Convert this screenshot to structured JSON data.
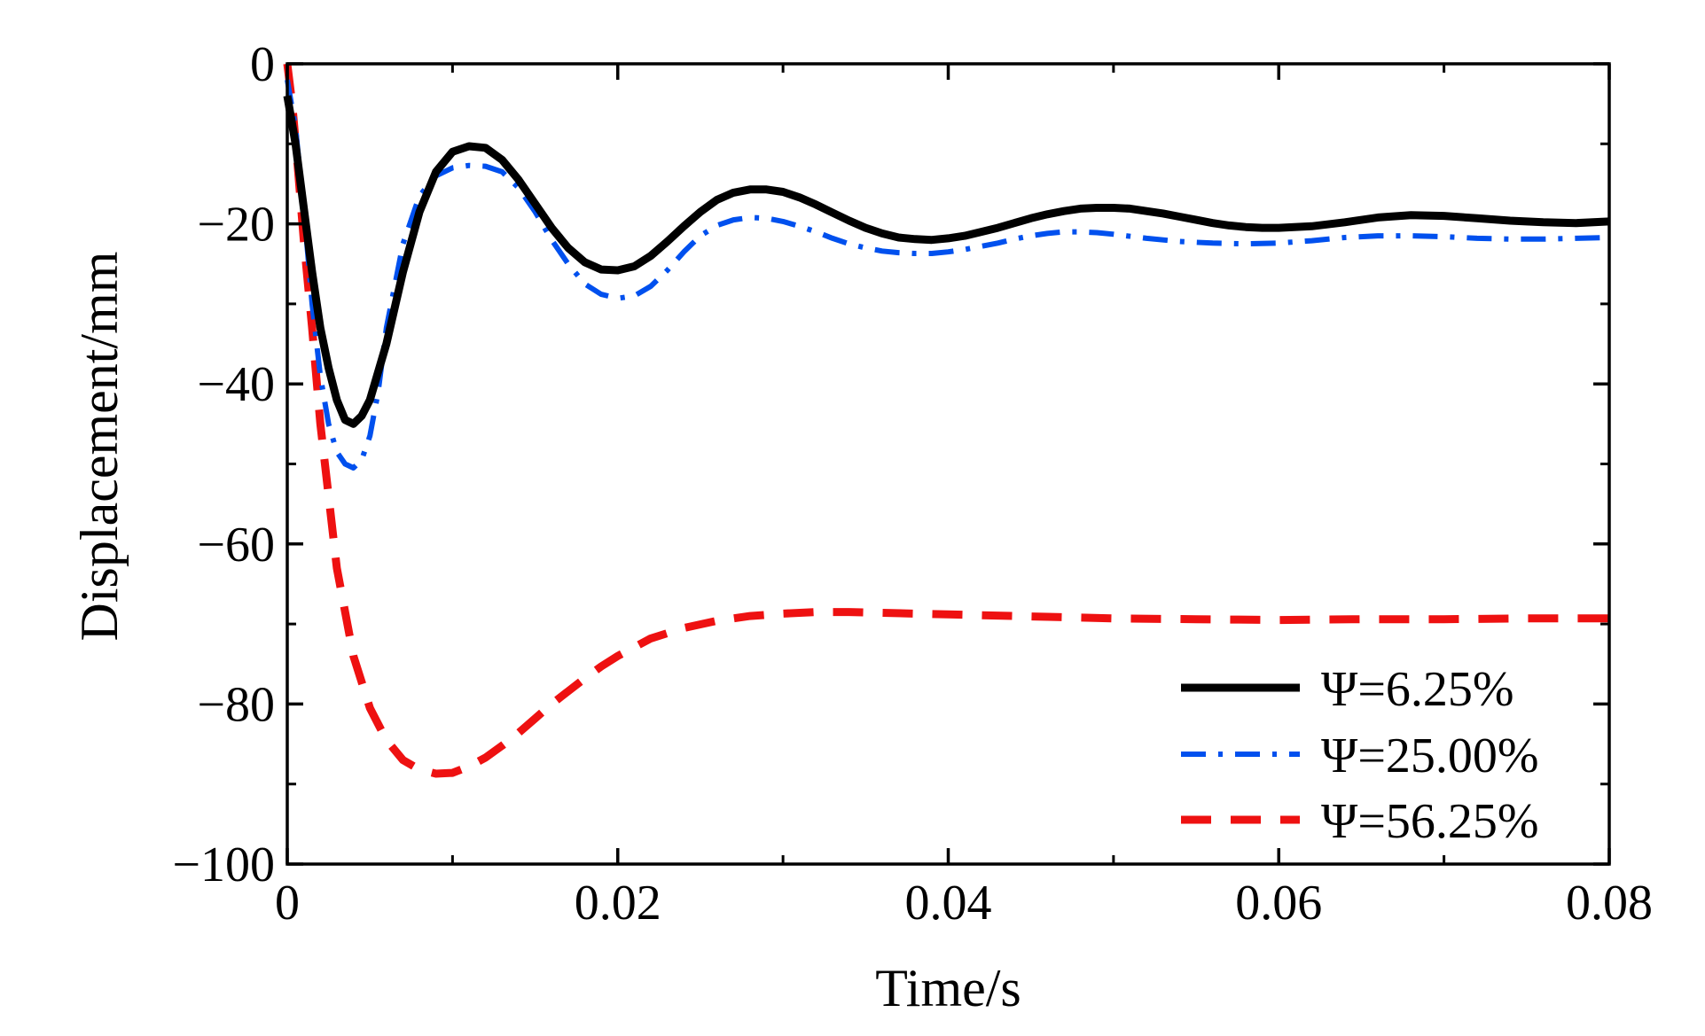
{
  "chart_data": {
    "type": "line",
    "xlabel": "Time/s",
    "ylabel": "Displacement/mm",
    "xlim": [
      0,
      0.08
    ],
    "ylim": [
      -100,
      0
    ],
    "xticks": [
      0,
      0.02,
      0.04,
      0.06,
      0.08
    ],
    "xtick_labels": [
      "0",
      "0.02",
      "0.04",
      "0.06",
      "0.08"
    ],
    "yticks": [
      0,
      -20,
      -40,
      -60,
      -80,
      -100
    ],
    "ytick_labels": [
      "0",
      "−20",
      "−40",
      "−60",
      "−80",
      "−100"
    ],
    "grid": false,
    "legend_position": "bottom-right",
    "series": [
      {
        "name": "Ψ=6.25%",
        "color": "#000000",
        "style": "solid",
        "x": [
          0,
          0.0005,
          0.001,
          0.0015,
          0.002,
          0.0025,
          0.003,
          0.0035,
          0.004,
          0.0045,
          0.005,
          0.006,
          0.007,
          0.008,
          0.009,
          0.01,
          0.011,
          0.012,
          0.013,
          0.014,
          0.015,
          0.016,
          0.017,
          0.018,
          0.019,
          0.02,
          0.021,
          0.022,
          0.023,
          0.024,
          0.025,
          0.026,
          0.027,
          0.028,
          0.029,
          0.03,
          0.031,
          0.032,
          0.033,
          0.034,
          0.035,
          0.036,
          0.037,
          0.038,
          0.039,
          0.04,
          0.041,
          0.042,
          0.043,
          0.044,
          0.045,
          0.046,
          0.047,
          0.048,
          0.049,
          0.05,
          0.051,
          0.052,
          0.053,
          0.054,
          0.055,
          0.056,
          0.057,
          0.058,
          0.059,
          0.06,
          0.062,
          0.064,
          0.066,
          0.068,
          0.07,
          0.072,
          0.074,
          0.076,
          0.078,
          0.08
        ],
        "y": [
          -4,
          -10,
          -18,
          -26,
          -33,
          -38,
          -42,
          -44.5,
          -45,
          -44,
          -42,
          -35,
          -26,
          -18.5,
          -13.5,
          -11,
          -10.3,
          -10.5,
          -12,
          -14.5,
          -17.5,
          -20.5,
          -23,
          -24.8,
          -25.7,
          -25.8,
          -25.3,
          -24,
          -22.2,
          -20.3,
          -18.5,
          -17,
          -16.1,
          -15.7,
          -15.7,
          -16,
          -16.7,
          -17.6,
          -18.6,
          -19.6,
          -20.5,
          -21.2,
          -21.7,
          -21.9,
          -22,
          -21.8,
          -21.5,
          -21,
          -20.5,
          -19.9,
          -19.3,
          -18.8,
          -18.4,
          -18.1,
          -18,
          -18,
          -18.1,
          -18.4,
          -18.7,
          -19.1,
          -19.5,
          -19.9,
          -20.2,
          -20.4,
          -20.5,
          -20.5,
          -20.3,
          -19.8,
          -19.2,
          -18.9,
          -19,
          -19.3,
          -19.6,
          -19.8,
          -19.9,
          -19.7
        ]
      },
      {
        "name": "Ψ=25.00%",
        "color": "#0050ee",
        "style": "dashdot",
        "x": [
          0,
          0.0005,
          0.001,
          0.0015,
          0.002,
          0.0025,
          0.003,
          0.0035,
          0.004,
          0.0045,
          0.005,
          0.0055,
          0.006,
          0.007,
          0.008,
          0.009,
          0.01,
          0.011,
          0.012,
          0.013,
          0.014,
          0.015,
          0.016,
          0.017,
          0.018,
          0.019,
          0.02,
          0.021,
          0.022,
          0.023,
          0.024,
          0.025,
          0.026,
          0.027,
          0.028,
          0.029,
          0.03,
          0.031,
          0.032,
          0.033,
          0.034,
          0.035,
          0.036,
          0.037,
          0.038,
          0.039,
          0.04,
          0.041,
          0.042,
          0.043,
          0.044,
          0.045,
          0.046,
          0.047,
          0.048,
          0.049,
          0.05,
          0.052,
          0.054,
          0.056,
          0.058,
          0.06,
          0.062,
          0.064,
          0.066,
          0.068,
          0.07,
          0.072,
          0.074,
          0.076,
          0.078,
          0.08
        ],
        "y": [
          -2,
          -8,
          -18,
          -30,
          -39,
          -45,
          -48.5,
          -50,
          -50.5,
          -49.5,
          -46.5,
          -41,
          -33,
          -22.5,
          -16.5,
          -14,
          -13,
          -12.7,
          -12.8,
          -13.5,
          -15.5,
          -18.5,
          -22,
          -25,
          -27.5,
          -28.8,
          -29.3,
          -29,
          -27.8,
          -25.8,
          -23.5,
          -21.5,
          -20.2,
          -19.5,
          -19.2,
          -19.3,
          -19.7,
          -20.3,
          -21,
          -21.8,
          -22.5,
          -23,
          -23.4,
          -23.6,
          -23.7,
          -23.7,
          -23.5,
          -23.2,
          -22.8,
          -22.4,
          -21.9,
          -21.5,
          -21.2,
          -21,
          -21,
          -21.1,
          -21.3,
          -21.8,
          -22.2,
          -22.4,
          -22.5,
          -22.4,
          -22.1,
          -21.7,
          -21.5,
          -21.5,
          -21.6,
          -21.8,
          -21.9,
          -21.9,
          -21.8,
          -21.7
        ]
      },
      {
        "name": "Ψ=56.25%",
        "color": "#ee1111",
        "style": "dashed",
        "x": [
          0,
          0.0003,
          0.0006,
          0.001,
          0.0015,
          0.002,
          0.003,
          0.004,
          0.005,
          0.006,
          0.007,
          0.008,
          0.009,
          0.01,
          0.011,
          0.012,
          0.013,
          0.014,
          0.015,
          0.016,
          0.017,
          0.018,
          0.019,
          0.02,
          0.022,
          0.024,
          0.026,
          0.028,
          0.03,
          0.032,
          0.034,
          0.036,
          0.038,
          0.04,
          0.042,
          0.044,
          0.046,
          0.048,
          0.05,
          0.055,
          0.06,
          0.065,
          0.07,
          0.075,
          0.08
        ],
        "y": [
          0,
          -5,
          -12,
          -22,
          -33,
          -45,
          -63,
          -74,
          -80.5,
          -84.5,
          -87,
          -88.2,
          -88.7,
          -88.6,
          -87.8,
          -86.7,
          -85.2,
          -83.6,
          -81.8,
          -80,
          -78.4,
          -76.8,
          -75.3,
          -74,
          -71.8,
          -70.5,
          -69.6,
          -69,
          -68.7,
          -68.5,
          -68.5,
          -68.6,
          -68.7,
          -68.8,
          -68.9,
          -69,
          -69.1,
          -69.2,
          -69.3,
          -69.4,
          -69.5,
          -69.4,
          -69.4,
          -69.3,
          -69.3
        ]
      }
    ]
  }
}
